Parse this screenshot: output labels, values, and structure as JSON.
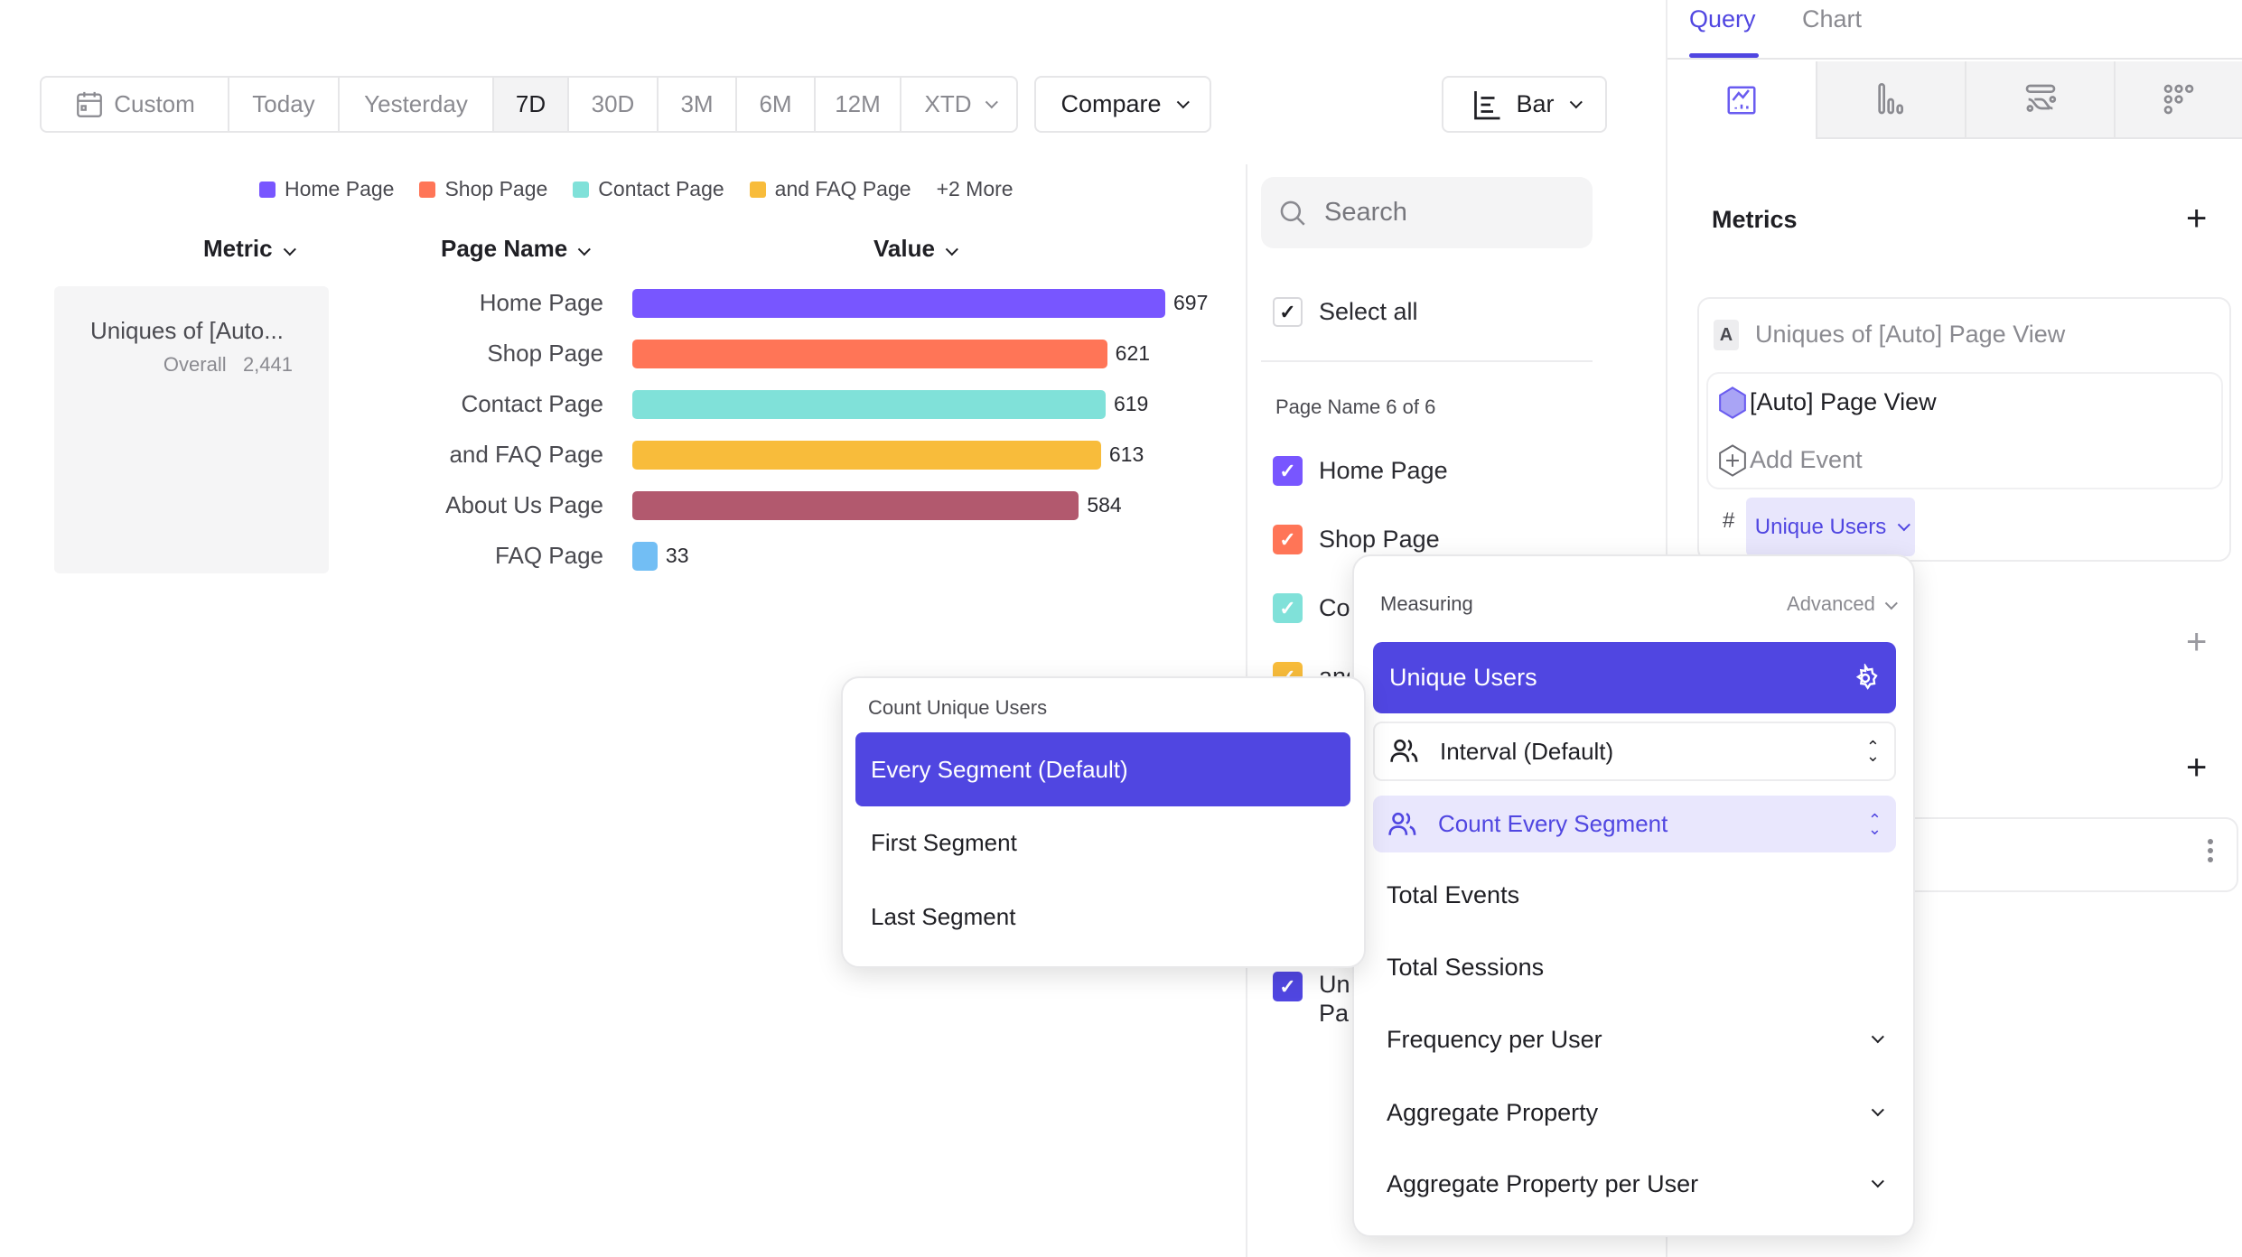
{
  "toolbar": {
    "date_ranges": [
      "Custom",
      "Today",
      "Yesterday",
      "7D",
      "30D",
      "3M",
      "6M",
      "12M",
      "XTD"
    ],
    "active_range": "7D",
    "compare_label": "Compare",
    "chart_type_label": "Bar"
  },
  "legend": {
    "items": [
      {
        "label": "Home Page",
        "color": "#7856ff"
      },
      {
        "label": "Shop Page",
        "color": "#ff7557"
      },
      {
        "label": "Contact Page",
        "color": "#80e1d9"
      },
      {
        "label": "and FAQ Page",
        "color": "#f8bc3b"
      }
    ],
    "more_label": "+2 More"
  },
  "table_headers": {
    "metric": "Metric",
    "page_name": "Page Name",
    "value": "Value"
  },
  "metric_card": {
    "name": "Uniques of [Auto...",
    "overall_label": "Overall",
    "overall_value": "2,441"
  },
  "chart_data": {
    "type": "bar",
    "orientation": "horizontal",
    "categories": [
      "Home Page",
      "Shop Page",
      "Contact Page",
      "and FAQ Page",
      "About Us Page",
      "FAQ Page"
    ],
    "values": [
      697,
      621,
      619,
      613,
      584,
      33
    ],
    "colors": [
      "#7856ff",
      "#ff7557",
      "#80e1d9",
      "#f8bc3b",
      "#b2596e",
      "#72bef4"
    ],
    "xlim": [
      0,
      697
    ]
  },
  "filter": {
    "search_placeholder": "Search",
    "select_all_label": "Select all",
    "group_label": "Page Name 6 of 6",
    "items": [
      {
        "label": "Home Page",
        "color": "#7856ff"
      },
      {
        "label": "Shop Page",
        "color": "#ff7557"
      },
      {
        "label": "Contact Page",
        "color": "#80e1d9"
      },
      {
        "label": "and FAQ Page",
        "color": "#f8bc3b"
      }
    ],
    "metric_item": {
      "line1": "Uniques of [Auto]",
      "line2": "Page View",
      "color": "#5046e1"
    }
  },
  "right_panel": {
    "tabs": [
      "Query",
      "Chart"
    ],
    "active_tab": "Query",
    "chart_icons": [
      "line-chart-icon",
      "bar-chart-icon",
      "flow-icon",
      "grid-dots-icon"
    ],
    "metrics_label": "Metrics",
    "metric": {
      "letter": "A",
      "title": "Uniques of [Auto] Page View",
      "event": "[Auto] Page View",
      "add_event": "Add Event",
      "measure_prefix": "#",
      "measure": "Unique Users"
    }
  },
  "measuring_popup": {
    "title": "Measuring",
    "advanced_label": "Advanced",
    "selected": "Unique Users",
    "interval": "Interval (Default)",
    "count_mode": "Count Every Segment",
    "options": [
      "Total Events",
      "Total Sessions"
    ],
    "expandable": [
      "Frequency per User",
      "Aggregate Property",
      "Aggregate Property per User"
    ]
  },
  "count_popup": {
    "title": "Count Unique Users",
    "options": [
      "Every Segment (Default)",
      "First Segment",
      "Last Segment"
    ],
    "selected": "Every Segment (Default)"
  },
  "accent": "#5046e1"
}
